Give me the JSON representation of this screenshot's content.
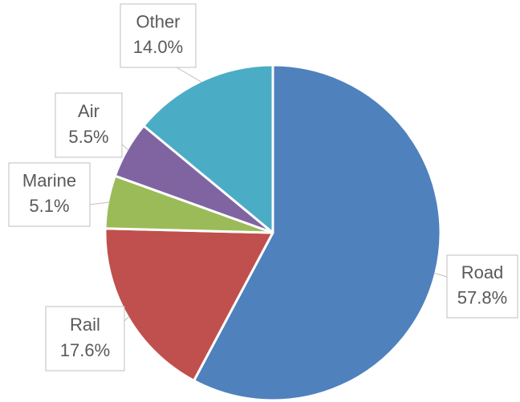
{
  "chart_data": {
    "type": "pie",
    "categories": [
      "Road",
      "Rail",
      "Marine",
      "Air",
      "Other"
    ],
    "values": [
      57.8,
      17.6,
      5.1,
      5.5,
      14.0
    ],
    "value_labels": [
      "57.8%",
      "17.6%",
      "5.1%",
      "5.5%",
      "14.0%"
    ],
    "colors": [
      "#4f81bd",
      "#c0504d",
      "#9bbb59",
      "#8064a2",
      "#4bacc6"
    ]
  }
}
